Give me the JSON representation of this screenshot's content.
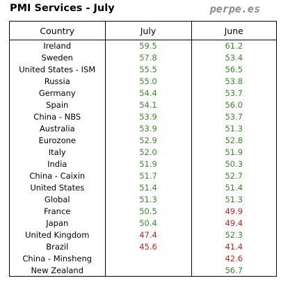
{
  "title": "PMI Services - July",
  "brand": "perpe.es",
  "colors": {
    "above_50": "#3a8a2a",
    "below_50": "#cc2222"
  },
  "table": {
    "headers": [
      "Country",
      "July",
      "June"
    ],
    "rows": [
      {
        "country": "Ireland",
        "july": "59.5",
        "june": "61.2"
      },
      {
        "country": "Sweden",
        "july": "57.8",
        "june": "53.4"
      },
      {
        "country": "United States - ISM",
        "july": "55.5",
        "june": "56.5"
      },
      {
        "country": "Russia",
        "july": "55.0",
        "june": "53.8"
      },
      {
        "country": "Germany",
        "july": "54.4",
        "june": "53.7"
      },
      {
        "country": "Spain",
        "july": "54.1",
        "june": "56.0"
      },
      {
        "country": "China - NBS",
        "july": "53.9",
        "june": "53.7"
      },
      {
        "country": "Australia",
        "july": "53.9",
        "june": "51.3"
      },
      {
        "country": "Eurozone",
        "july": "52.9",
        "june": "52.8"
      },
      {
        "country": "Italy",
        "july": "52.0",
        "june": "51.9"
      },
      {
        "country": "India",
        "july": "51.9",
        "june": "50.3"
      },
      {
        "country": "China - Caixin",
        "july": "51.7",
        "june": "52.7"
      },
      {
        "country": "United States",
        "july": "51.4",
        "june": "51.4"
      },
      {
        "country": "Global",
        "july": "51.3",
        "june": "51.3"
      },
      {
        "country": "France",
        "july": "50.5",
        "june": "49.9"
      },
      {
        "country": "Japan",
        "july": "50.4",
        "june": "49.4"
      },
      {
        "country": "United Kingdom",
        "july": "47.4",
        "june": "52.3"
      },
      {
        "country": "Brazil",
        "july": "45.6",
        "june": "41.4"
      },
      {
        "country": "China - Minsheng",
        "july": "",
        "june": "42.6"
      },
      {
        "country": "New Zealand",
        "july": "",
        "june": "56.7"
      }
    ]
  }
}
